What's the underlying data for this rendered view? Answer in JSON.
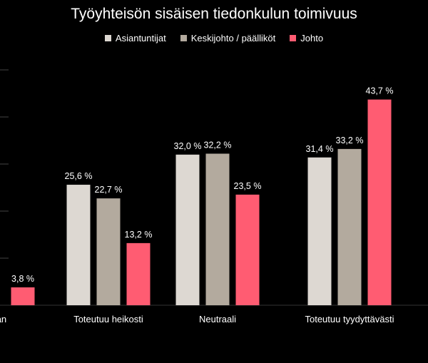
{
  "chart_data": {
    "type": "bar",
    "title": "Työyhteisön sisäisen tiedonkulun toimivuus",
    "categories": [
      "inkaan",
      "Toteutuu heikosti",
      "Neutraali",
      "Toteutuu tyydyttävästi"
    ],
    "series": [
      {
        "name": "Asiantuntijat",
        "color": "#ddd8d2",
        "values": [
          null,
          25.6,
          32.0,
          31.4
        ]
      },
      {
        "name": "Keskijohto / päälliköt",
        "color": "#b3aa9e",
        "values": [
          null,
          22.7,
          32.2,
          33.2
        ]
      },
      {
        "name": "Johto",
        "color": "#ff5c72",
        "values": [
          3.8,
          13.2,
          23.5,
          43.7
        ]
      }
    ],
    "labels": [
      [
        null,
        "25,6 %",
        "32,0 %",
        "31,4 %"
      ],
      [
        null,
        "22,7 %",
        "32,2 %",
        "33,2 %"
      ],
      [
        "3,8 %",
        "13,2 %",
        "23,5 %",
        "43,7 %"
      ]
    ],
    "ylim": [
      0,
      50
    ],
    "grid": true,
    "legend_position": "top"
  }
}
